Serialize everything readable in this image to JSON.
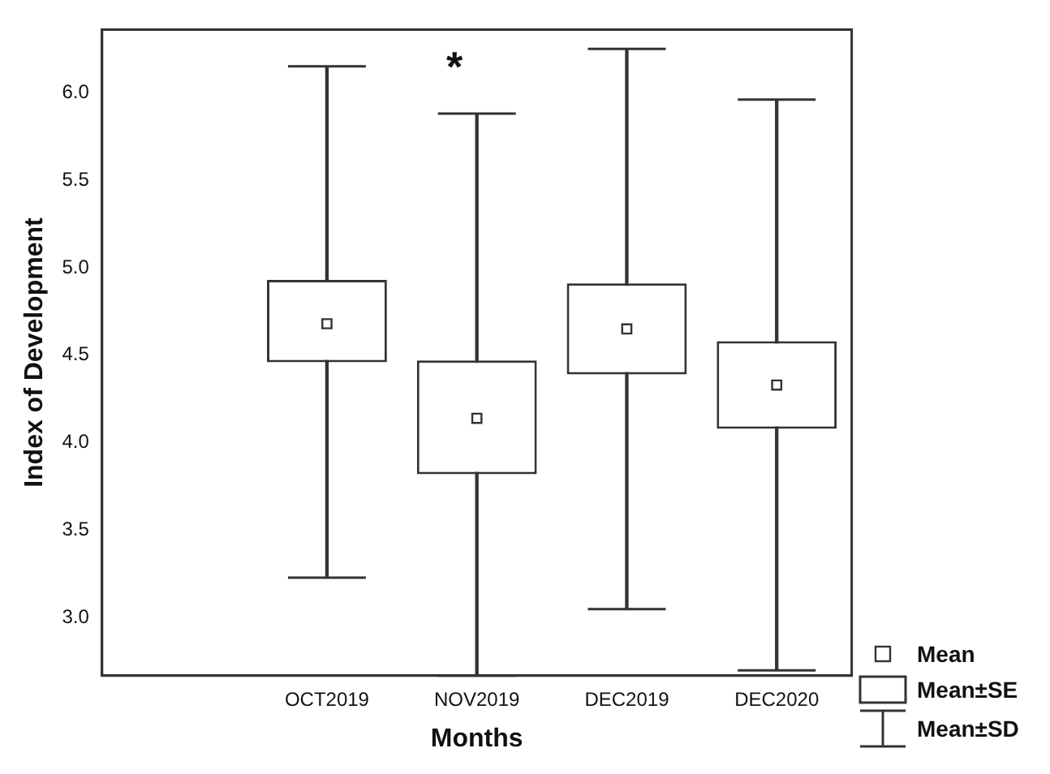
{
  "chart_data": {
    "type": "box",
    "xlabel": "Months",
    "ylabel": "Index of Development",
    "categories": [
      null,
      "OCT2019",
      "NOV2019",
      "DEC2019",
      "DEC2020"
    ],
    "boxes": [
      null,
      {
        "low": 3.23,
        "q1": 4.46,
        "median": null,
        "q3": 4.93,
        "high": 6.15,
        "mean": 4.68
      },
      {
        "low": 2.67,
        "q1": 3.82,
        "median": null,
        "q3": 4.47,
        "high": 5.88,
        "mean": 4.14
      },
      {
        "low": 3.05,
        "q1": 4.39,
        "median": null,
        "q3": 4.91,
        "high": 6.25,
        "mean": 4.65
      },
      {
        "low": 2.7,
        "q1": 4.08,
        "median": null,
        "q3": 4.58,
        "high": 5.96,
        "mean": 4.33
      }
    ],
    "color": "#333333",
    "ylim": [
      2.67,
      6.36
    ],
    "yticks": [
      {
        "value": 3,
        "label": "3.0"
      },
      3.5,
      {
        "value": 4,
        "label": "4.0"
      },
      4.5,
      {
        "value": 5,
        "label": "5.0"
      },
      5.5,
      {
        "value": 6,
        "label": "6.0"
      }
    ],
    "annotations": [
      "*",
      "Mean",
      "Mean±SE",
      "Mean±SD"
    ]
  }
}
